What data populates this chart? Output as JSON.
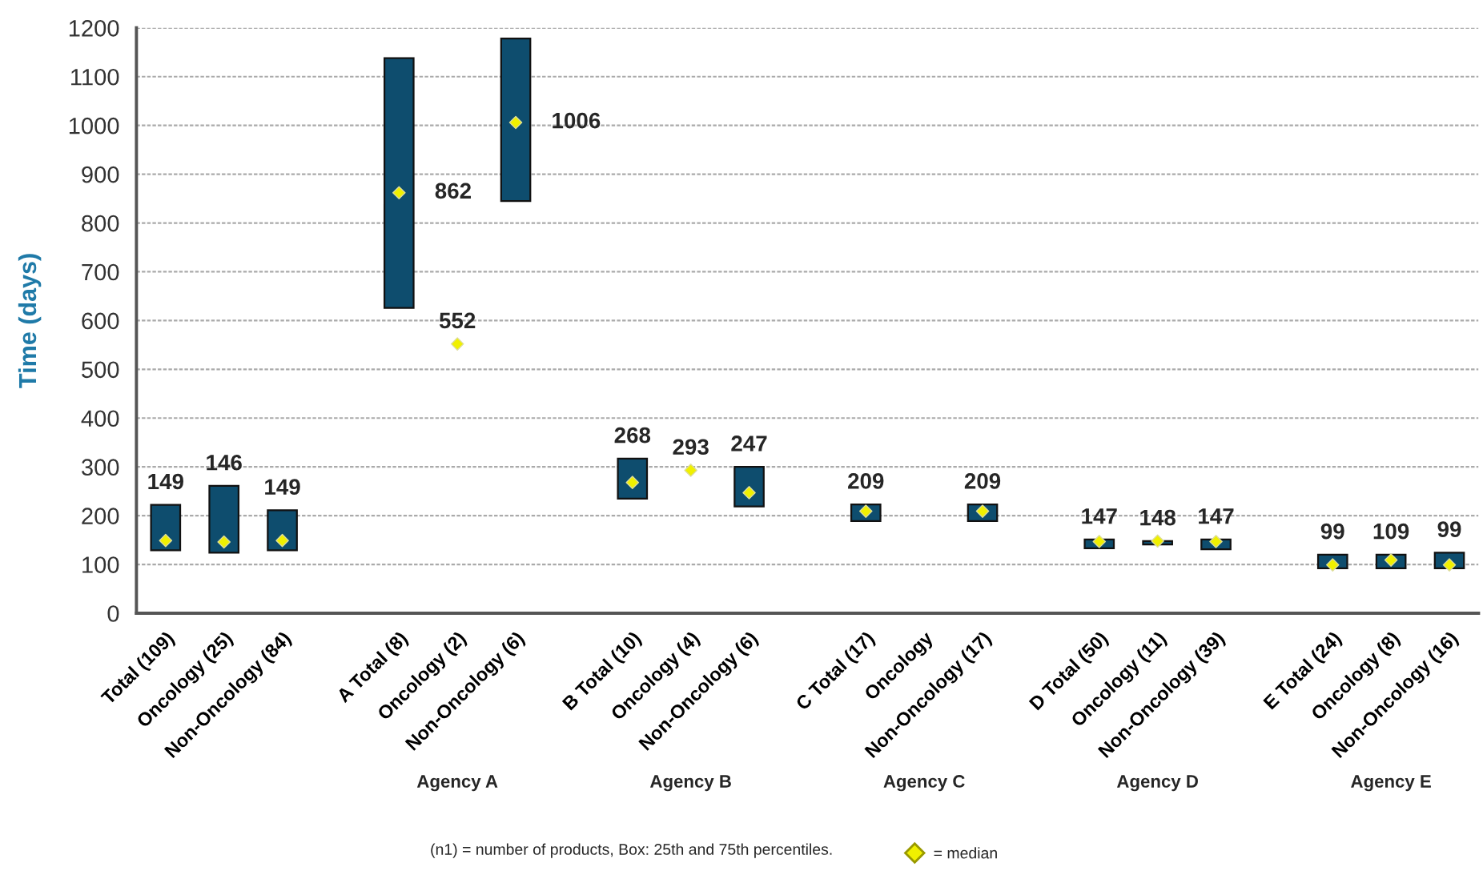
{
  "chart_data": {
    "type": "bar",
    "categories": [
      "Total (109)",
      "Oncology (25)",
      "Non-Oncology (84)",
      null,
      "A Total (8)",
      "Oncology (2)",
      "Non-Oncology (6)",
      null,
      "B Total (10)",
      "Oncology (4)",
      "Non-Oncology (6)",
      null,
      "C Total (17)",
      "Oncology",
      "Non-Oncology (17)",
      null,
      "D Total (50)",
      "Oncology (11)",
      "Non-Oncology (39)",
      null,
      "E Total (24)",
      "Oncology (8)",
      "Non-Oncology (16)"
    ],
    "series": [
      {
        "type": "bar",
        "color": "#0e4d6e",
        "base": [
          129,
          124,
          129,
          null,
          626,
          null,
          845,
          null,
          235,
          null,
          219,
          null,
          189,
          null,
          189,
          null,
          133,
          141,
          131,
          null,
          92,
          92,
          92
        ],
        "values": [
          93,
          137,
          82,
          null,
          512,
          null,
          333,
          null,
          82,
          null,
          81,
          null,
          34,
          null,
          34,
          null,
          18,
          7,
          20,
          null,
          28,
          28,
          32
        ]
      },
      {
        "type": "scatter",
        "name": "= median",
        "color": "#f0f000",
        "marker": "diamond",
        "data_labels": true,
        "values": [
          149,
          146,
          149,
          null,
          862,
          552,
          1006,
          null,
          268,
          293,
          247,
          null,
          209,
          null,
          209,
          null,
          147,
          148,
          147,
          null,
          99,
          109,
          99
        ]
      }
    ],
    "ylabel": "Time (days)",
    "ylim": [
      0,
      1200
    ],
    "yticks": [
      0,
      100,
      200,
      300,
      400,
      500,
      600,
      700,
      800,
      900,
      1000,
      1100,
      1200
    ],
    "grid": "y",
    "legend": "bottom",
    "annotations": [
      "Agency A",
      "Agency B",
      "Agency C",
      "Agency D",
      "Agency E",
      "(n1) = number of products, Box: 25th and 75th percentiles."
    ]
  }
}
